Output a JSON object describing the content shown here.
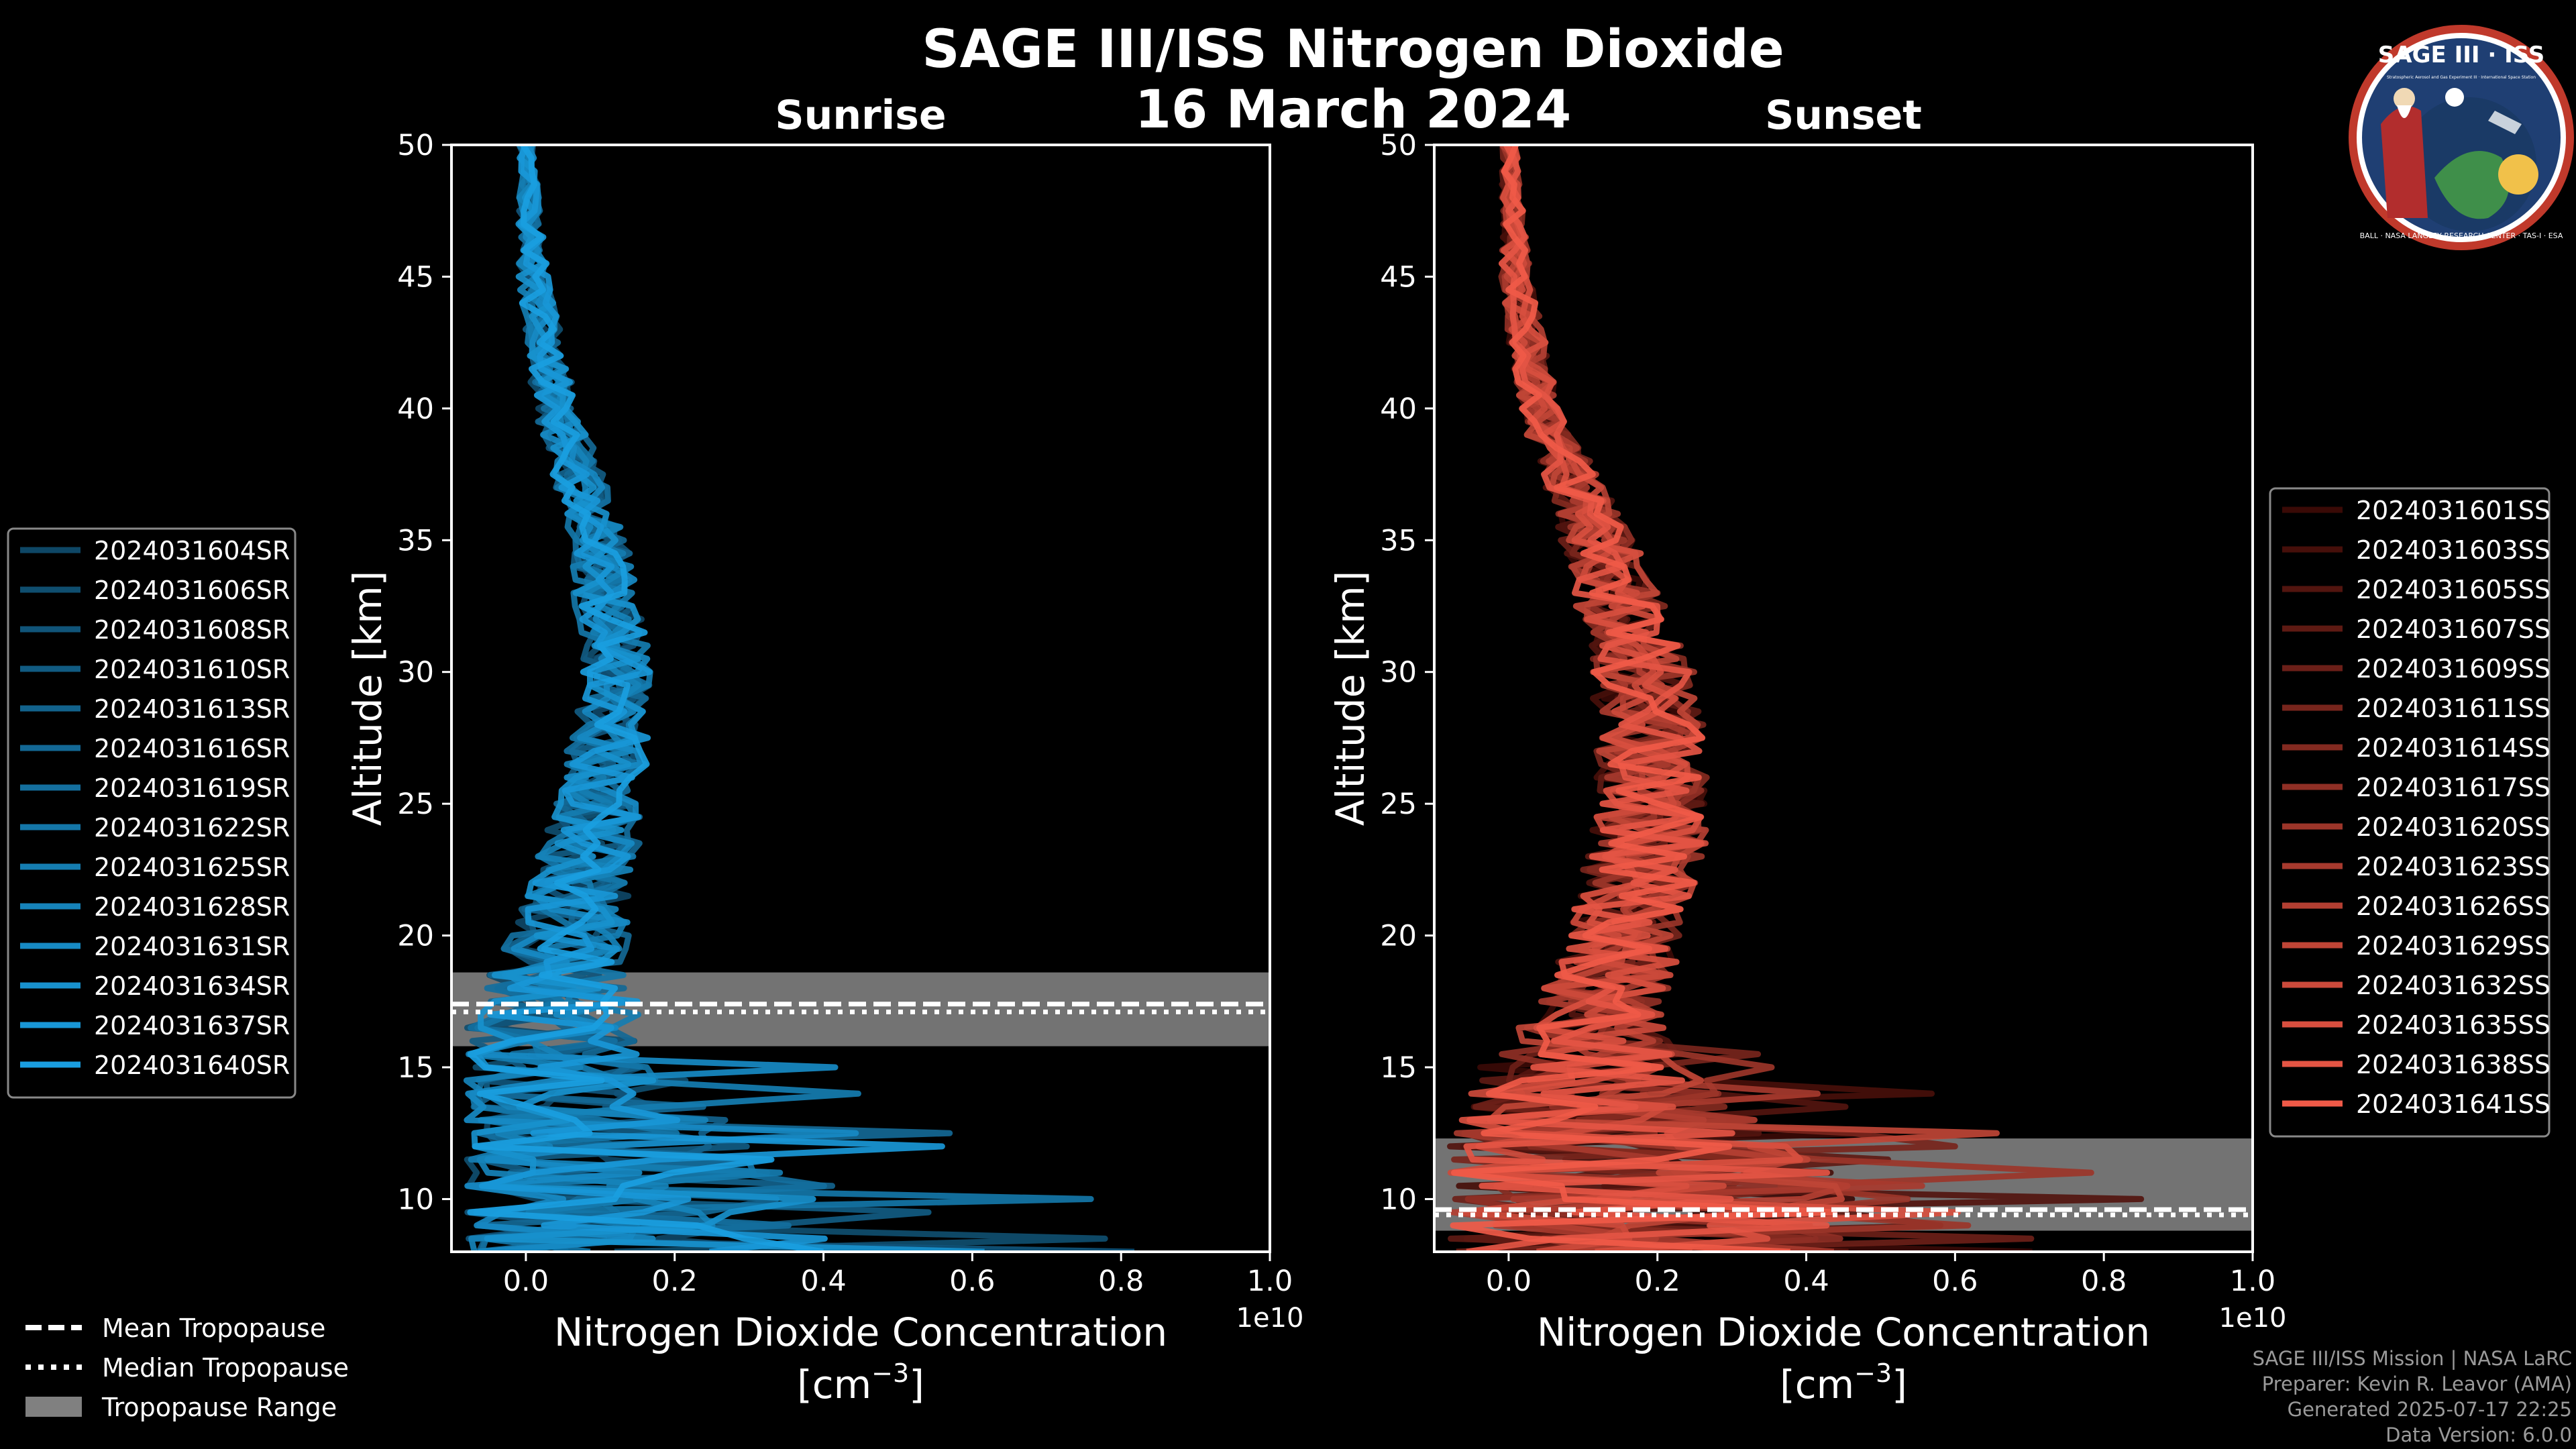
{
  "figure": {
    "title": "SAGE III/ISS Nitrogen Dioxide",
    "date": "16 March 2024",
    "logo": {
      "top": "SAGE III · ISS",
      "small": "Stratospheric Aerosol and Gas Experiment III · International Space Station",
      "ring": "BALL · NASA LANGLEY RESEARCH CENTER · TAS-I · ESA"
    }
  },
  "footer": [
    "SAGE III/ISS Mission | NASA LaRC",
    "Preparer: Kevin R. Leavor (AMA)",
    "Generated 2025-07-17 22:25",
    "Data Version: 6.0.0"
  ],
  "tropo_legend": [
    {
      "label": "Mean Tropopause",
      "style": "dashed"
    },
    {
      "label": "Median Tropopause",
      "style": "dotted"
    },
    {
      "label": "Tropopause Range",
      "style": "patch"
    }
  ],
  "chart_data": [
    {
      "type": "line",
      "title": "Sunrise",
      "xlabel": "Nitrogen Dioxide Concentration",
      "xunit": "[cm",
      "xunit_sup": "−3",
      "xunit_close": "]",
      "offset_text": "1e10",
      "ylabel": "Altitude [km]",
      "xlim": [
        -0.1,
        1.0
      ],
      "ylim": [
        8,
        50
      ],
      "xticks": [
        0.0,
        0.2,
        0.4,
        0.6,
        0.8,
        1.0
      ],
      "xtick_labels": [
        "0.0",
        "0.2",
        "0.4",
        "0.6",
        "0.8",
        "1.0"
      ],
      "yticks": [
        10,
        15,
        20,
        25,
        30,
        35,
        40,
        45,
        50
      ],
      "ytick_labels": [
        "10",
        "15",
        "20",
        "25",
        "30",
        "35",
        "40",
        "45",
        "50"
      ],
      "grid": false,
      "legend_position": "outside-left",
      "color_dark": "#0e4766",
      "color_light": "#1a9ee0",
      "tropopause": {
        "min": 15.8,
        "max": 18.6,
        "mean": 17.4,
        "median": 17.1,
        "range_color": "#808080"
      },
      "series": [
        {
          "name": "2024031604SR"
        },
        {
          "name": "2024031606SR"
        },
        {
          "name": "2024031608SR"
        },
        {
          "name": "2024031610SR"
        },
        {
          "name": "2024031613SR"
        },
        {
          "name": "2024031616SR"
        },
        {
          "name": "2024031619SR"
        },
        {
          "name": "2024031622SR"
        },
        {
          "name": "2024031625SR"
        },
        {
          "name": "2024031628SR"
        },
        {
          "name": "2024031631SR"
        },
        {
          "name": "2024031634SR"
        },
        {
          "name": "2024031637SR"
        },
        {
          "name": "2024031640SR"
        }
      ],
      "profile_center": [
        [
          50,
          0.0
        ],
        [
          45,
          0.01
        ],
        [
          40,
          0.04
        ],
        [
          35,
          0.1
        ],
        [
          30,
          0.12
        ],
        [
          25,
          0.1
        ],
        [
          20,
          0.06
        ],
        [
          18,
          0.04
        ],
        [
          16,
          0.03
        ],
        [
          14,
          0.02
        ],
        [
          12,
          0.02
        ],
        [
          10,
          0.02
        ],
        [
          8,
          0.02
        ]
      ],
      "profile_spread": [
        [
          50,
          0.01
        ],
        [
          45,
          0.02
        ],
        [
          40,
          0.03
        ],
        [
          35,
          0.04
        ],
        [
          30,
          0.05
        ],
        [
          25,
          0.06
        ],
        [
          20,
          0.08
        ],
        [
          18,
          0.1
        ],
        [
          16,
          0.15
        ],
        [
          14,
          0.22
        ],
        [
          12,
          0.3
        ],
        [
          10,
          0.38
        ],
        [
          8,
          0.42
        ]
      ]
    },
    {
      "type": "line",
      "title": "Sunset",
      "xlabel": "Nitrogen Dioxide Concentration",
      "xunit": "[cm",
      "xunit_sup": "−3",
      "xunit_close": "]",
      "offset_text": "1e10",
      "ylabel": "Altitude [km]",
      "xlim": [
        -0.1,
        1.0
      ],
      "ylim": [
        8,
        50
      ],
      "xticks": [
        0.0,
        0.2,
        0.4,
        0.6,
        0.8,
        1.0
      ],
      "xtick_labels": [
        "0.0",
        "0.2",
        "0.4",
        "0.6",
        "0.8",
        "1.0"
      ],
      "yticks": [
        10,
        15,
        20,
        25,
        30,
        35,
        40,
        45,
        50
      ],
      "ytick_labels": [
        "10",
        "15",
        "20",
        "25",
        "30",
        "35",
        "40",
        "45",
        "50"
      ],
      "grid": false,
      "legend_position": "outside-right",
      "color_dark": "#3a0a06",
      "color_light": "#f05a48",
      "tropopause": {
        "min": 8.8,
        "max": 12.3,
        "mean": 9.6,
        "median": 9.4,
        "range_color": "#808080"
      },
      "series": [
        {
          "name": "2024031601SS"
        },
        {
          "name": "2024031603SS"
        },
        {
          "name": "2024031605SS"
        },
        {
          "name": "2024031607SS"
        },
        {
          "name": "2024031609SS"
        },
        {
          "name": "2024031611SS"
        },
        {
          "name": "2024031614SS"
        },
        {
          "name": "2024031617SS"
        },
        {
          "name": "2024031620SS"
        },
        {
          "name": "2024031623SS"
        },
        {
          "name": "2024031626SS"
        },
        {
          "name": "2024031629SS"
        },
        {
          "name": "2024031632SS"
        },
        {
          "name": "2024031635SS"
        },
        {
          "name": "2024031638SS"
        },
        {
          "name": "2024031641SS"
        }
      ],
      "profile_center": [
        [
          50,
          0.0
        ],
        [
          45,
          0.01
        ],
        [
          40,
          0.04
        ],
        [
          35,
          0.12
        ],
        [
          30,
          0.18
        ],
        [
          25,
          0.2
        ],
        [
          20,
          0.16
        ],
        [
          17,
          0.12
        ],
        [
          15,
          0.1
        ],
        [
          13,
          0.12
        ],
        [
          11,
          0.15
        ],
        [
          9,
          0.15
        ],
        [
          8,
          0.15
        ]
      ],
      "profile_spread": [
        [
          50,
          0.01
        ],
        [
          45,
          0.02
        ],
        [
          40,
          0.03
        ],
        [
          35,
          0.05
        ],
        [
          30,
          0.07
        ],
        [
          25,
          0.08
        ],
        [
          20,
          0.08
        ],
        [
          17,
          0.09
        ],
        [
          15,
          0.15
        ],
        [
          13,
          0.22
        ],
        [
          11,
          0.3
        ],
        [
          9,
          0.34
        ],
        [
          8,
          0.3
        ]
      ]
    }
  ]
}
